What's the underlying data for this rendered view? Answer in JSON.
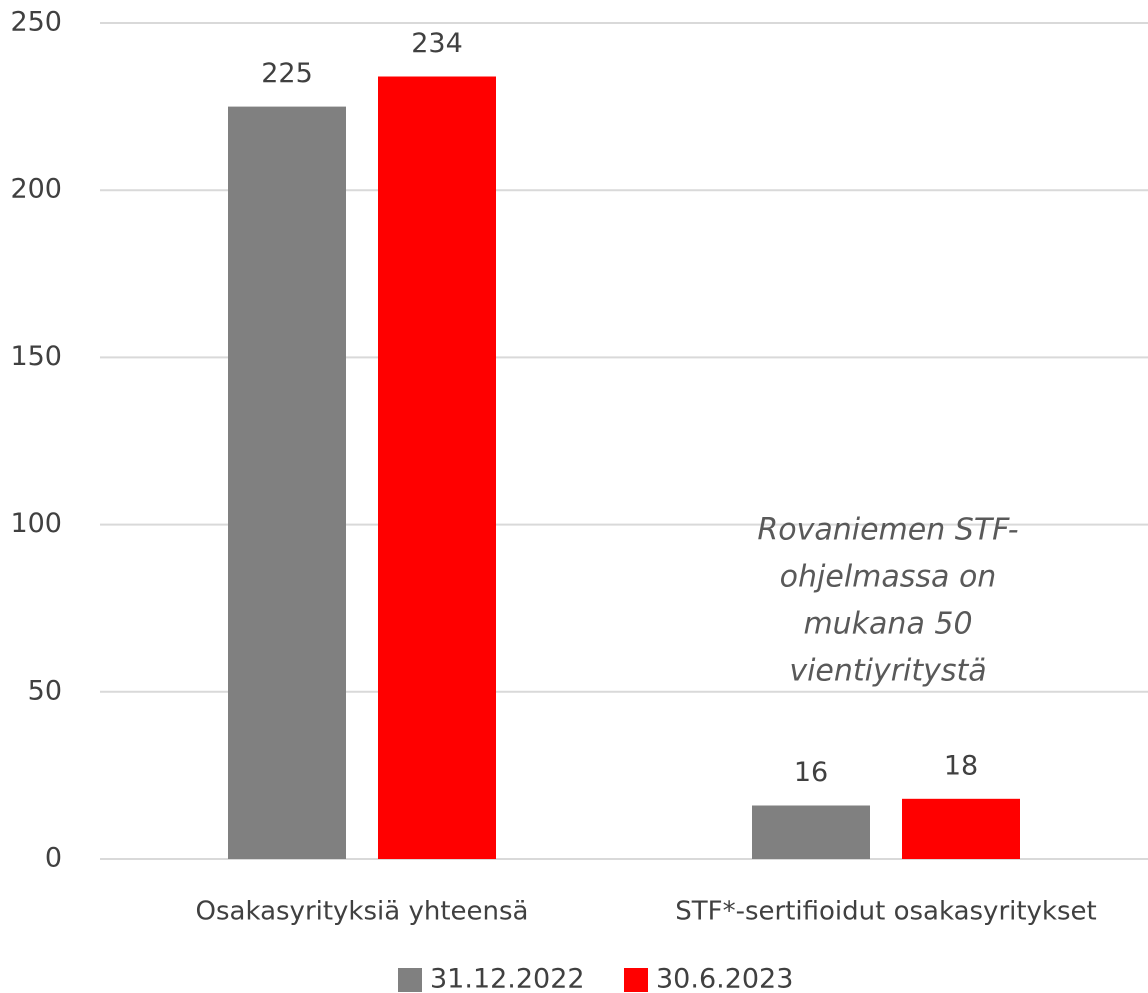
{
  "chart_data": {
    "type": "bar",
    "categories": [
      "Osakasyrityksiä yhteensä",
      "STF*-sertifioidut osakasyritykset"
    ],
    "series": [
      {
        "name": "31.12.2022",
        "color": "#808080",
        "values": [
          225,
          16
        ]
      },
      {
        "name": "30.6.2023",
        "color": "#ff0000",
        "values": [
          234,
          18
        ]
      }
    ],
    "ylim": [
      0,
      250
    ],
    "yticks": [
      0,
      50,
      100,
      150,
      200,
      250
    ],
    "grid": true,
    "annotation": [
      "Rovaniemen STF-",
      "ohjelmassa on",
      "mukana 50",
      "vientiyritystä"
    ],
    "legend": "bottom"
  }
}
